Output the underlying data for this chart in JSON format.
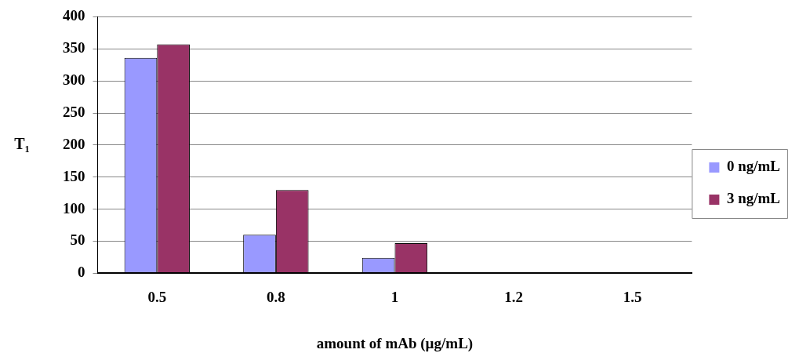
{
  "chart_data": {
    "type": "bar",
    "xlabel": "amount of mAb (µg/mL)",
    "ylabel": "T₁",
    "categories": [
      "0.5",
      "0.8",
      "1",
      "1.2",
      "1.5"
    ],
    "series": [
      {
        "name": "0 ng/mL",
        "color": "#9999ff",
        "values": [
          336,
          60,
          24,
          0,
          0
        ]
      },
      {
        "name": "3 ng/mL",
        "color": "#993366",
        "values": [
          357,
          130,
          47,
          0,
          0
        ]
      }
    ],
    "ylim": [
      0,
      400
    ],
    "yticks": [
      0,
      50,
      100,
      150,
      200,
      250,
      300,
      350,
      400
    ],
    "grid": "y",
    "legend": "right"
  }
}
